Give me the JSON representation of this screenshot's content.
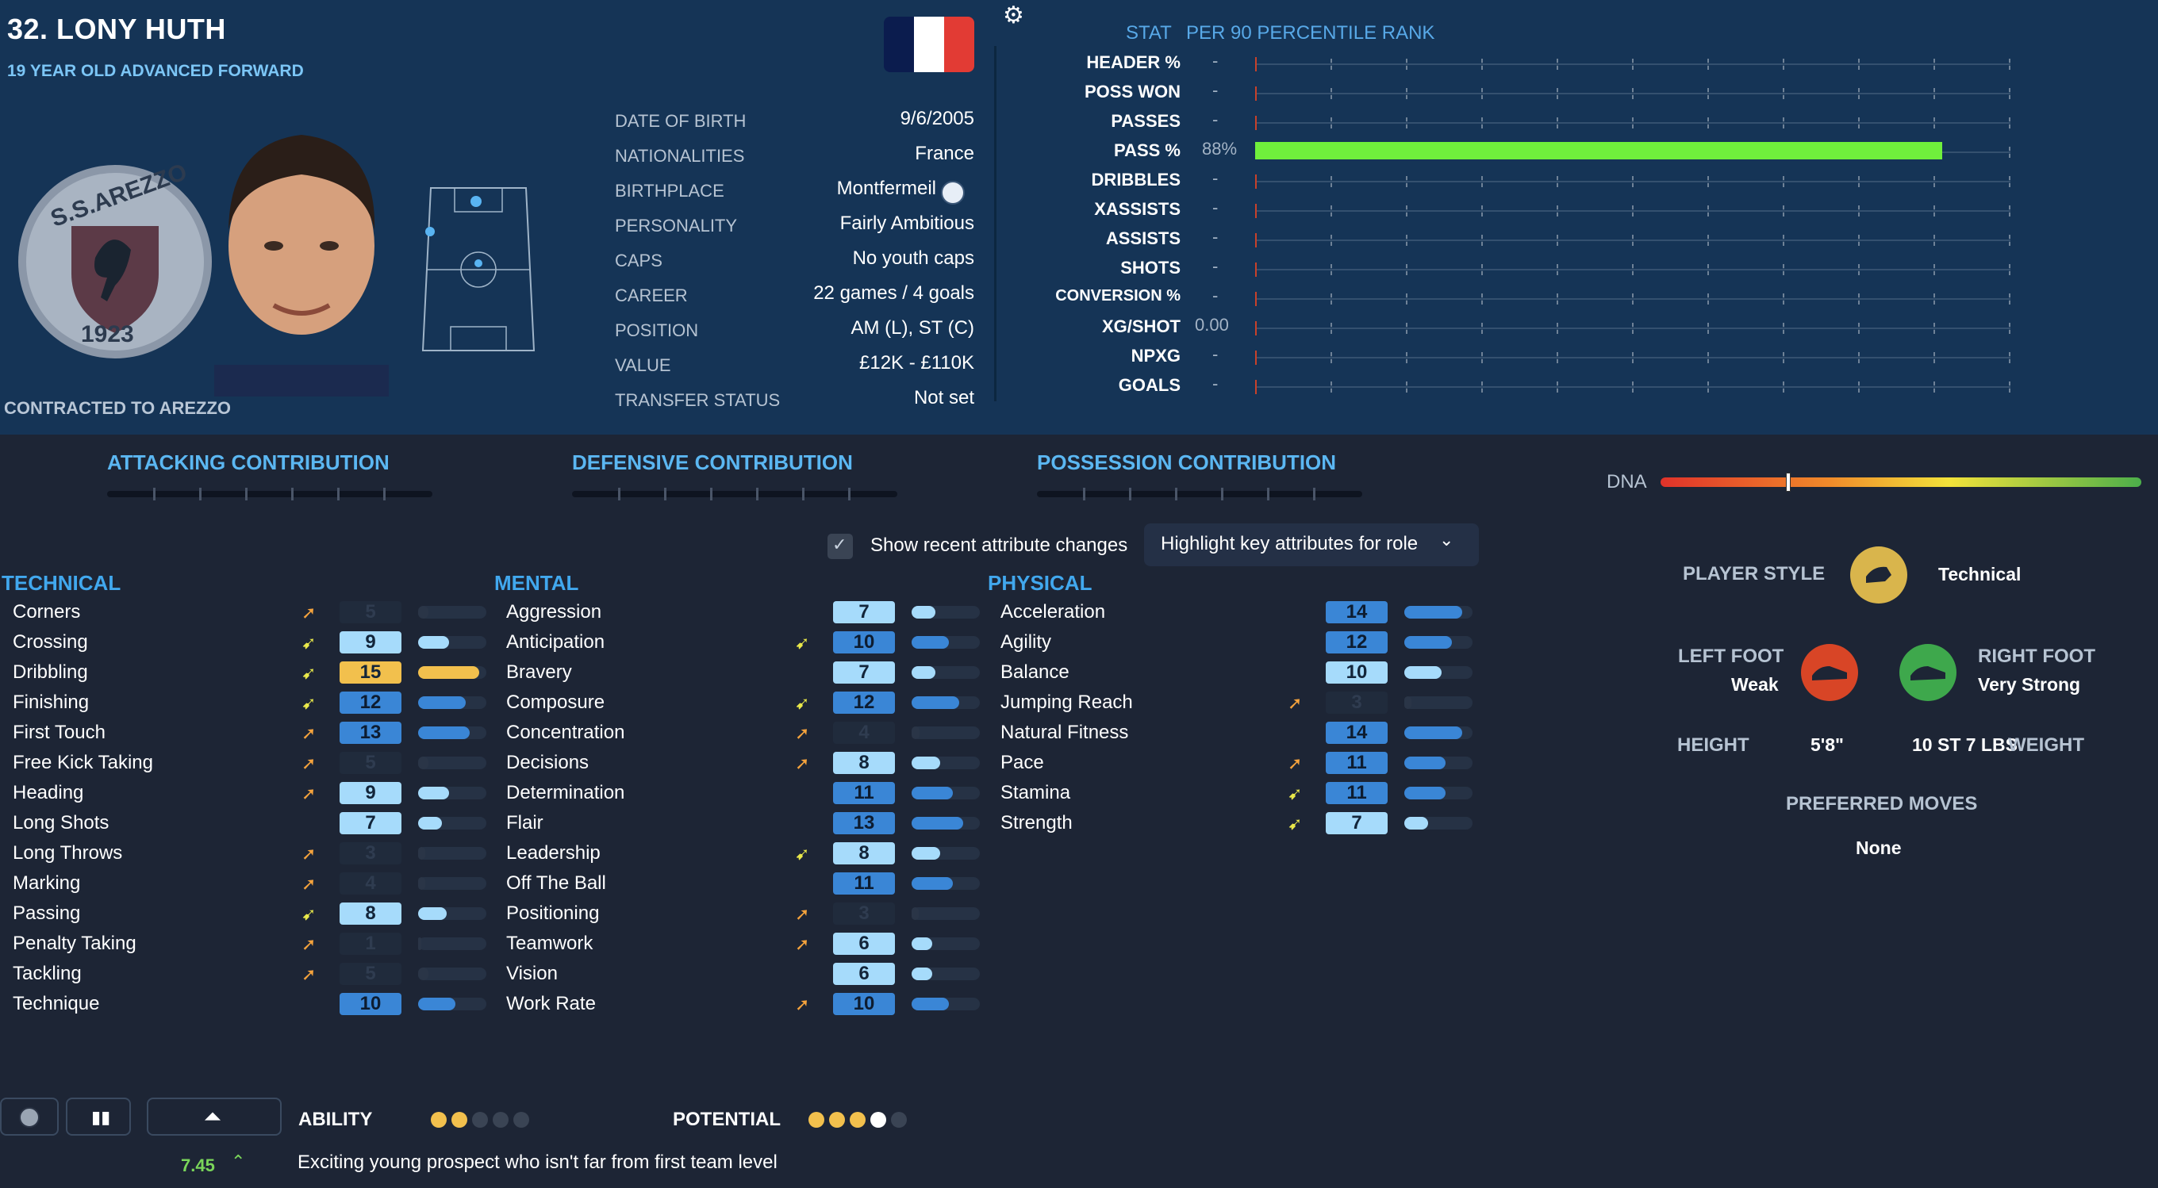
{
  "player": {
    "name": "32. LONY HUTH",
    "subtitle": "19 YEAR OLD ADVANCED FORWARD",
    "contract": "CONTRACTED TO AREZZO",
    "badge_top": "S.S.AREZZO",
    "badge_year": "1923",
    "flag_colors": [
      "#0b1c4e",
      "#ffffff",
      "#e23b34"
    ]
  },
  "info": [
    {
      "label": "DATE OF BIRTH",
      "value": "9/6/2005"
    },
    {
      "label": "NATIONALITIES",
      "value": "France"
    },
    {
      "label": "BIRTHPLACE",
      "value": "Montfermeil"
    },
    {
      "label": "PERSONALITY",
      "value": "Fairly Ambitious"
    },
    {
      "label": "CAPS",
      "value": "No youth caps"
    },
    {
      "label": "CAREER",
      "value": "22 games /   4 goals"
    },
    {
      "label": "POSITION",
      "value": "AM (L), ST (C)"
    },
    {
      "label": "VALUE",
      "value": "£12K - £110K"
    },
    {
      "label": "TRANSFER STATUS",
      "value": "Not set"
    }
  ],
  "stats_header": {
    "stat": "STAT",
    "rank": "PER 90 PERCENTILE RANK"
  },
  "stats": [
    {
      "label": "HEADER %",
      "value": "-"
    },
    {
      "label": "POSS WON",
      "value": "-"
    },
    {
      "label": "PASSES",
      "value": "-"
    },
    {
      "label": "PASS %",
      "value": "88%",
      "percentile": 91
    },
    {
      "label": "DRIBBLES",
      "value": "-"
    },
    {
      "label": "XASSISTS",
      "value": "-"
    },
    {
      "label": "ASSISTS",
      "value": "-"
    },
    {
      "label": "SHOTS",
      "value": "-"
    },
    {
      "label": "CONVERSION %",
      "value": "-"
    },
    {
      "label": "XG/SHOT",
      "value": "0.00"
    },
    {
      "label": "NPXG",
      "value": "-"
    },
    {
      "label": "GOALS",
      "value": "-"
    }
  ],
  "contributions": {
    "attacking": "ATTACKING CONTRIBUTION",
    "defensive": "DEFENSIVE CONTRIBUTION",
    "possession": "POSSESSION CONTRIBUTION",
    "dna_label": "DNA",
    "dna_level": 0.26
  },
  "controls": {
    "show_recent": "Show recent attribute changes",
    "highlight": "Highlight key attributes for role"
  },
  "sections": {
    "technical": "TECHNICAL",
    "mental": "MENTAL",
    "physical": "PHYSICAL"
  },
  "technical": [
    {
      "name": "Corners",
      "value": "5",
      "arrow": "up",
      "style": "faint",
      "level": 0.15
    },
    {
      "name": "Crossing",
      "value": "9",
      "arrow": "dn",
      "style": "light",
      "level": 0.45
    },
    {
      "name": "Dribbling",
      "value": "15",
      "arrow": "dn",
      "style": "gold",
      "level": 0.9
    },
    {
      "name": "Finishing",
      "value": "12",
      "arrow": "dn",
      "style": "mid",
      "level": 0.7
    },
    {
      "name": "First Touch",
      "value": "13",
      "arrow": "up",
      "style": "mid",
      "level": 0.75
    },
    {
      "name": "Free Kick Taking",
      "value": "5",
      "arrow": "up",
      "style": "faint",
      "level": 0.15
    },
    {
      "name": "Heading",
      "value": "9",
      "arrow": "up",
      "style": "light",
      "level": 0.45
    },
    {
      "name": "Long Shots",
      "value": "7",
      "arrow": "",
      "style": "light",
      "level": 0.35
    },
    {
      "name": "Long Throws",
      "value": "3",
      "arrow": "up",
      "style": "faint",
      "level": 0.1
    },
    {
      "name": "Marking",
      "value": "4",
      "arrow": "up",
      "style": "faint",
      "level": 0.1
    },
    {
      "name": "Passing",
      "value": "8",
      "arrow": "dn",
      "style": "light",
      "level": 0.42
    },
    {
      "name": "Penalty Taking",
      "value": "1",
      "arrow": "up",
      "style": "faint",
      "level": 0.05
    },
    {
      "name": "Tackling",
      "value": "5",
      "arrow": "up",
      "style": "faint",
      "level": 0.15
    },
    {
      "name": "Technique",
      "value": "10",
      "arrow": "",
      "style": "mid",
      "level": 0.55
    }
  ],
  "mental": [
    {
      "name": "Aggression",
      "value": "7",
      "arrow": "",
      "style": "light",
      "level": 0.35
    },
    {
      "name": "Anticipation",
      "value": "10",
      "arrow": "dn",
      "style": "mid",
      "level": 0.55
    },
    {
      "name": "Bravery",
      "value": "7",
      "arrow": "",
      "style": "light",
      "level": 0.35
    },
    {
      "name": "Composure",
      "value": "12",
      "arrow": "dn",
      "style": "mid",
      "level": 0.7
    },
    {
      "name": "Concentration",
      "value": "4",
      "arrow": "up",
      "style": "faint",
      "level": 0.12
    },
    {
      "name": "Decisions",
      "value": "8",
      "arrow": "up",
      "style": "light",
      "level": 0.42
    },
    {
      "name": "Determination",
      "value": "11",
      "arrow": "",
      "style": "mid",
      "level": 0.6
    },
    {
      "name": "Flair",
      "value": "13",
      "arrow": "",
      "style": "mid",
      "level": 0.75
    },
    {
      "name": "Leadership",
      "value": "8",
      "arrow": "dn",
      "style": "light",
      "level": 0.42
    },
    {
      "name": "Off The Ball",
      "value": "11",
      "arrow": "",
      "style": "mid",
      "level": 0.6
    },
    {
      "name": "Positioning",
      "value": "3",
      "arrow": "up",
      "style": "faint",
      "level": 0.1
    },
    {
      "name": "Teamwork",
      "value": "6",
      "arrow": "up",
      "style": "light",
      "level": 0.3
    },
    {
      "name": "Vision",
      "value": "6",
      "arrow": "",
      "style": "light",
      "level": 0.3
    },
    {
      "name": "Work Rate",
      "value": "10",
      "arrow": "up",
      "style": "mid",
      "level": 0.55
    }
  ],
  "physical": [
    {
      "name": "Acceleration",
      "value": "14",
      "arrow": "",
      "style": "mid",
      "level": 0.85
    },
    {
      "name": "Agility",
      "value": "12",
      "arrow": "",
      "style": "mid",
      "level": 0.7
    },
    {
      "name": "Balance",
      "value": "10",
      "arrow": "",
      "style": "light",
      "level": 0.55
    },
    {
      "name": "Jumping Reach",
      "value": "3",
      "arrow": "up",
      "style": "faint",
      "level": 0.1
    },
    {
      "name": "Natural Fitness",
      "value": "14",
      "arrow": "",
      "style": "mid",
      "level": 0.85
    },
    {
      "name": "Pace",
      "value": "11",
      "arrow": "up",
      "style": "mid",
      "level": 0.6
    },
    {
      "name": "Stamina",
      "value": "11",
      "arrow": "dn",
      "style": "mid",
      "level": 0.6
    },
    {
      "name": "Strength",
      "value": "7",
      "arrow": "dn",
      "style": "light",
      "level": 0.35
    }
  ],
  "profile": {
    "player_style_label": "PLAYER STYLE",
    "player_style": "Technical",
    "left_foot_label": "LEFT FOOT",
    "left_foot": "Weak",
    "right_foot_label": "RIGHT FOOT",
    "right_foot": "Very Strong",
    "height_label": "HEIGHT",
    "height": "5'8\"",
    "weight": "10 ST 7 LBS",
    "weight_label": "WEIGHT",
    "moves_label": "PREFERRED MOVES",
    "moves": "None"
  },
  "bottom": {
    "ability_label": "ABILITY",
    "ability_stars": 2,
    "potential_label": "POTENTIAL",
    "potential_stars": 3,
    "potential_half": 1,
    "rating": "7.45",
    "comment": "Exciting young prospect who isn't far from first team level"
  }
}
